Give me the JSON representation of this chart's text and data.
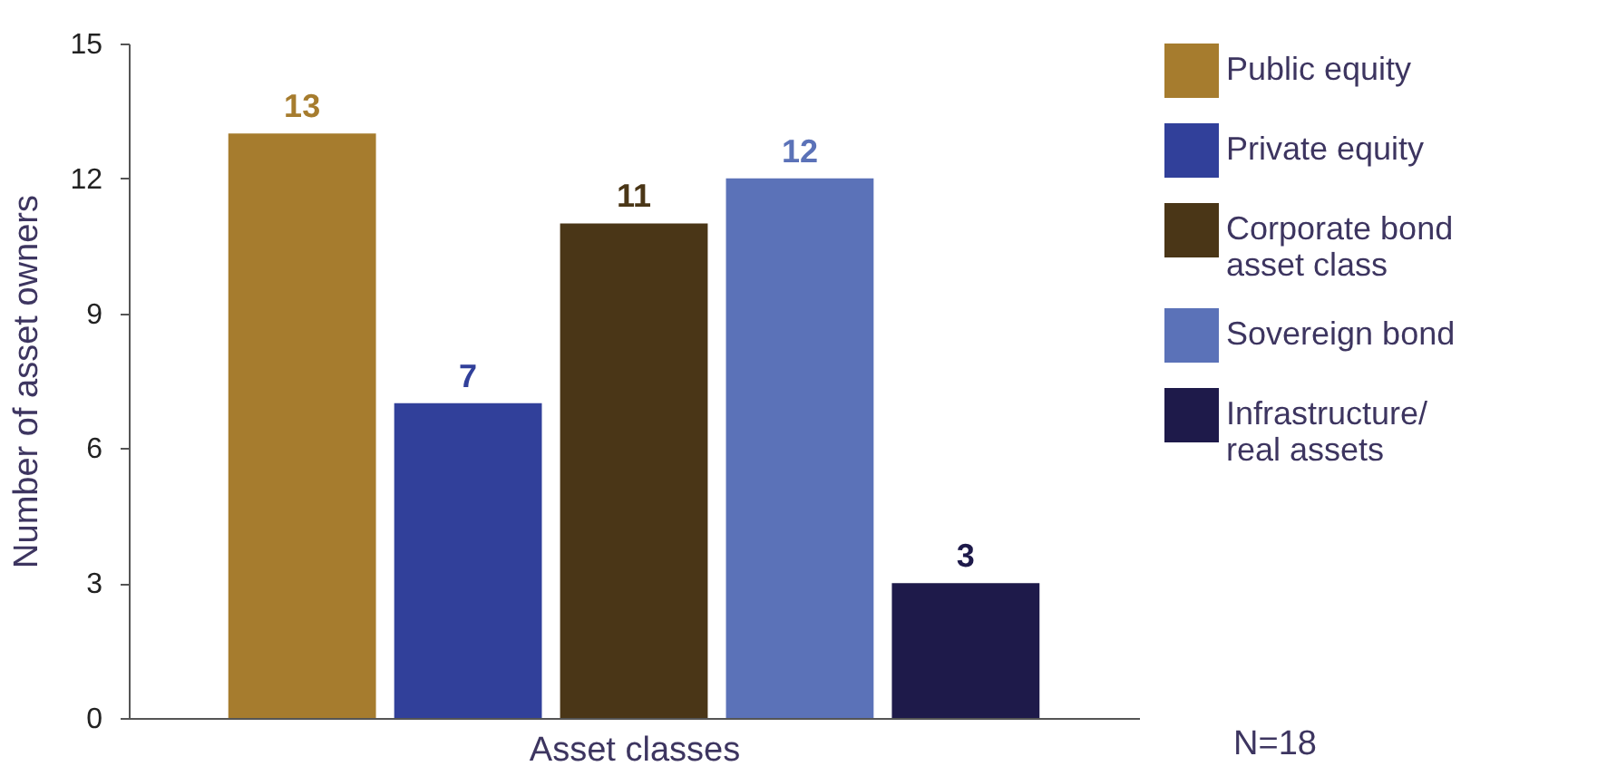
{
  "chart_data": {
    "type": "bar",
    "xlabel": "Asset classes",
    "ylabel": "Number of asset owners",
    "categories": [
      null
    ],
    "series": [
      {
        "name": "Public equity",
        "color": "#a67c2e",
        "values": [
          13
        ]
      },
      {
        "name": "Private equity",
        "color": "#31409a",
        "values": [
          7
        ]
      },
      {
        "name": "Corporate bond asset class",
        "color": "#4a3617",
        "values": [
          11
        ]
      },
      {
        "name": "Sovereign bond",
        "color": "#5b72b8",
        "values": [
          12
        ]
      },
      {
        "name": "Infrastructure/ real assets",
        "color": "#1e1a4a",
        "values": [
          3
        ]
      }
    ],
    "ylim": [
      0,
      15
    ],
    "yticks": [
      0,
      3,
      6,
      9,
      12,
      15
    ],
    "grid": false,
    "legend": "right",
    "data_labels": true,
    "annotations": [
      "N=18"
    ]
  }
}
